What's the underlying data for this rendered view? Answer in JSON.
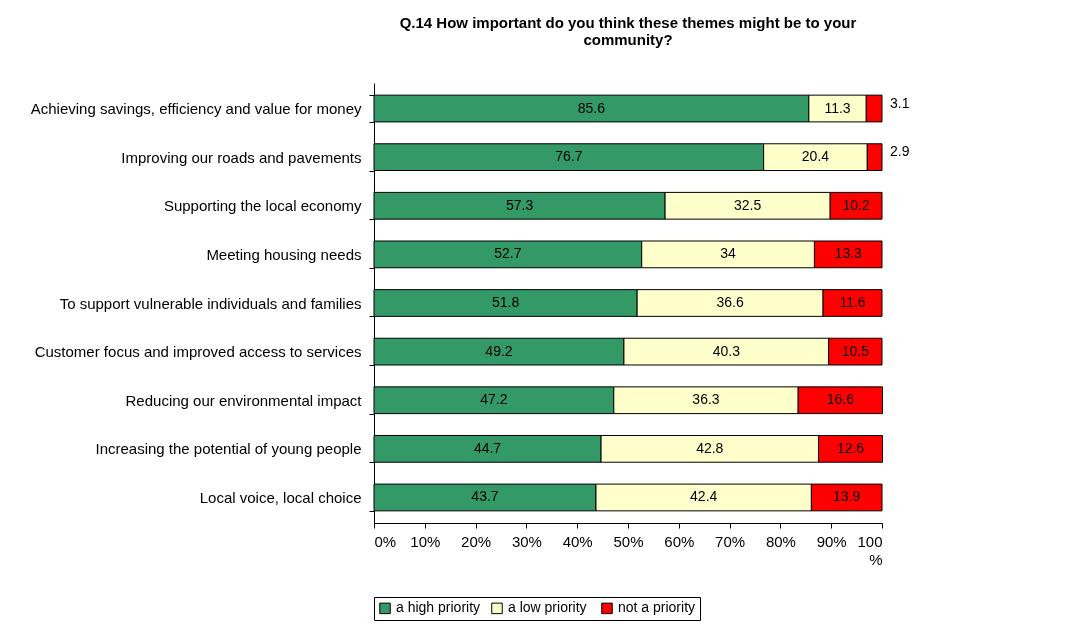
{
  "chart_data": {
    "type": "bar",
    "orientation": "horizontal",
    "stacked": true,
    "title": "Q.14 How important do you think these themes might be to your community?",
    "categories": [
      "Achieving savings, efficiency and value for money",
      "Improving our roads and pavements",
      "Supporting the local economy",
      "Meeting housing needs",
      "To support vulnerable individuals and families",
      "Customer focus and improved access to services",
      "Reducing our environmental impact",
      "Increasing the potential of young people",
      "Local voice, local choice"
    ],
    "series": [
      {
        "name": "a high priority",
        "color": "#339966",
        "values": [
          85.6,
          76.7,
          57.3,
          52.7,
          51.8,
          49.2,
          47.2,
          44.7,
          43.7
        ]
      },
      {
        "name": "a low  priority",
        "color": "#ffffcc",
        "values": [
          11.3,
          20.4,
          32.5,
          34,
          36.6,
          40.3,
          36.3,
          42.8,
          42.4
        ]
      },
      {
        "name": "not a priority",
        "color": "#ff0000",
        "values": [
          3.1,
          2.9,
          10.2,
          13.3,
          11.6,
          10.5,
          16.6,
          12.6,
          13.9
        ]
      }
    ],
    "xlim": [
      0,
      100
    ],
    "xticks": [
      {
        "value": 0,
        "label": "0%"
      },
      {
        "value": 10,
        "label": "10%"
      },
      {
        "value": 20,
        "label": "20%"
      },
      {
        "value": 30,
        "label": "30%"
      },
      {
        "value": 40,
        "label": "40%"
      },
      {
        "value": 50,
        "label": "50%"
      },
      {
        "value": 60,
        "label": "60%"
      },
      {
        "value": 70,
        "label": "70%"
      },
      {
        "value": 80,
        "label": "80%"
      },
      {
        "value": 90,
        "label": "90%"
      },
      {
        "value": 100,
        "label": "100 %"
      }
    ],
    "data_labels": true,
    "grid": false,
    "legend": "bottom"
  }
}
